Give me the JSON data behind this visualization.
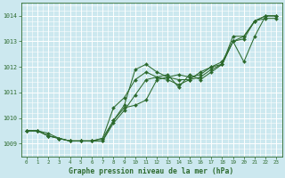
{
  "title": "Graphe pression niveau de la mer (hPa)",
  "bg_color": "#cce8ef",
  "grid_color": "#ffffff",
  "line_color": "#2d6a2d",
  "marker_color": "#2d6a2d",
  "xlim": [
    -0.5,
    23.5
  ],
  "ylim": [
    1008.5,
    1014.5
  ],
  "yticks": [
    1009,
    1010,
    1011,
    1012,
    1013,
    1014
  ],
  "xticks": [
    0,
    1,
    2,
    3,
    4,
    5,
    6,
    7,
    8,
    9,
    10,
    11,
    12,
    13,
    14,
    15,
    16,
    17,
    18,
    19,
    20,
    21,
    22,
    23
  ],
  "series": [
    [
      1009.5,
      1009.5,
      1009.4,
      1009.2,
      1009.1,
      1009.1,
      1009.1,
      1009.1,
      1009.9,
      1010.5,
      1011.9,
      1012.1,
      1011.8,
      1011.6,
      1011.5,
      1011.5,
      1011.6,
      1011.9,
      1012.1,
      1013.2,
      1013.2,
      1013.8,
      1013.9,
      1013.9
    ],
    [
      1009.5,
      1009.5,
      1009.3,
      1009.2,
      1009.1,
      1009.1,
      1009.1,
      1009.2,
      1009.9,
      1010.4,
      1010.5,
      1010.7,
      1011.5,
      1011.6,
      1011.7,
      1011.6,
      1011.7,
      1012.0,
      1012.1,
      1013.0,
      1013.2,
      1013.8,
      1014.0,
      1014.0
    ],
    [
      1009.5,
      1009.5,
      1009.3,
      1009.2,
      1009.1,
      1009.1,
      1009.1,
      1009.2,
      1010.4,
      1010.8,
      1011.5,
      1011.8,
      1011.6,
      1011.5,
      1011.3,
      1011.5,
      1011.8,
      1012.0,
      1012.2,
      1013.0,
      1012.2,
      1013.2,
      1014.0,
      1014.0
    ],
    [
      1009.5,
      1009.5,
      1009.3,
      1009.2,
      1009.1,
      1009.1,
      1009.1,
      1009.1,
      1009.8,
      1010.3,
      1010.9,
      1011.5,
      1011.6,
      1011.7,
      1011.2,
      1011.7,
      1011.5,
      1011.8,
      1012.1,
      1013.0,
      1013.1,
      1013.8,
      1014.0,
      1014.0
    ]
  ]
}
